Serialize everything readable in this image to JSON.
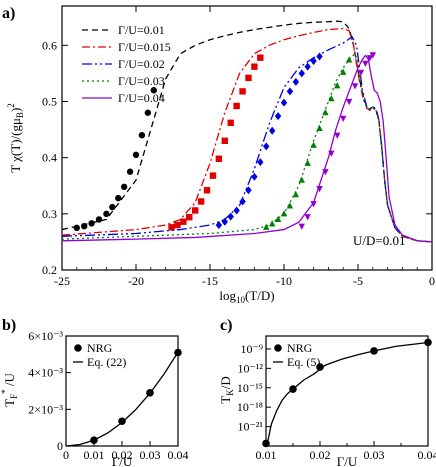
{
  "figure": {
    "panels": {
      "a": "a)",
      "b": "b)",
      "c": "c)"
    }
  },
  "chart_data": [
    {
      "id": "a",
      "type": "line",
      "xlabel": "log10(T/D)",
      "ylabel": "T χ(T)/(gμB)²",
      "xlim": [
        -25,
        0
      ],
      "ylim": [
        0.2,
        0.67
      ],
      "xticks": [
        -25,
        -20,
        -15,
        -10,
        -5,
        0
      ],
      "yticks": [
        0.2,
        0.3,
        0.4,
        0.5,
        0.6
      ],
      "annotation": "U/D=0.01",
      "legend_position": "top-left",
      "series": [
        {
          "name": "Γ/U=0.01",
          "color": "#000000",
          "dash": "6,4",
          "marker": "circle",
          "x": [
            -25,
            -22,
            -20,
            -19,
            -18,
            -17,
            -16,
            -15,
            -14,
            -13,
            -12,
            -11,
            -10,
            -9,
            -8,
            -7,
            -6.5,
            -6,
            -5.6,
            -5.3,
            -5.0,
            -4.7,
            -4.4,
            -4.2,
            -4.0,
            -3.8,
            -3.6,
            -3.4,
            -3.2,
            -3.0,
            -2.5,
            -2,
            -1,
            0
          ],
          "y": [
            0.272,
            0.29,
            0.36,
            0.45,
            0.54,
            0.585,
            0.6,
            0.61,
            0.617,
            0.623,
            0.628,
            0.632,
            0.636,
            0.639,
            0.641,
            0.642,
            0.643,
            0.642,
            0.63,
            0.6,
            0.555,
            0.515,
            0.49,
            0.487,
            0.49,
            0.488,
            0.47,
            0.42,
            0.36,
            0.315,
            0.275,
            0.26,
            0.252,
            0.25
          ],
          "markers_x": [
            -24,
            -23.5,
            -23,
            -22.5,
            -22,
            -21.6,
            -21.2,
            -20.8,
            -20.4,
            -20.0,
            -19.6,
            -19.2,
            -18.8
          ],
          "markers_y": [
            0.275,
            0.278,
            0.283,
            0.29,
            0.3,
            0.312,
            0.328,
            0.348,
            0.375,
            0.405,
            0.44,
            0.48,
            0.52
          ]
        },
        {
          "name": "Γ/U=0.015",
          "color": "#e00000",
          "dash": "8,3,2,3",
          "marker": "square",
          "x": [
            -25,
            -22,
            -20,
            -18,
            -17,
            -16,
            -15,
            -14,
            -13,
            -12,
            -11,
            -10,
            -9,
            -8,
            -7,
            -6,
            -5.6,
            -5.3,
            -5.0,
            -4.7,
            -4.4,
            -4.2,
            -4.0,
            -3.8,
            -3.6,
            -3.4,
            -3.2,
            -3.0,
            -2.5,
            -2,
            -1,
            0
          ],
          "y": [
            0.262,
            0.268,
            0.272,
            0.28,
            0.29,
            0.32,
            0.39,
            0.48,
            0.55,
            0.585,
            0.6,
            0.61,
            0.617,
            0.623,
            0.628,
            0.63,
            0.626,
            0.6,
            0.55,
            0.51,
            0.488,
            0.484,
            0.488,
            0.485,
            0.468,
            0.42,
            0.36,
            0.315,
            0.275,
            0.26,
            0.252,
            0.25
          ],
          "markers_x": [
            -17.6,
            -17.2,
            -16.8,
            -16.4,
            -16.0,
            -15.6,
            -15.2,
            -14.8,
            -14.4,
            -14.0,
            -13.6,
            -13.2,
            -12.8,
            -12.4,
            -12.0,
            -11.6
          ],
          "markers_y": [
            0.276,
            0.28,
            0.286,
            0.294,
            0.306,
            0.322,
            0.342,
            0.368,
            0.398,
            0.43,
            0.462,
            0.492,
            0.518,
            0.542,
            0.562,
            0.578
          ]
        },
        {
          "name": "Γ/U=0.02",
          "color": "#0000e0",
          "dash": "10,3,2,3,2,3",
          "marker": "diamond",
          "x": [
            -25,
            -20,
            -17,
            -15,
            -14,
            -13,
            -12,
            -11,
            -10,
            -9,
            -8,
            -7,
            -6,
            -5.4,
            -5.1,
            -4.9,
            -4.7,
            -4.4,
            -4.2,
            -4.0,
            -3.8,
            -3.6,
            -3.4,
            -3.2,
            -3.0,
            -2.5,
            -2,
            -1,
            0
          ],
          "y": [
            0.26,
            0.265,
            0.272,
            0.28,
            0.29,
            0.315,
            0.38,
            0.46,
            0.525,
            0.56,
            0.578,
            0.592,
            0.604,
            0.615,
            0.6,
            0.56,
            0.52,
            0.49,
            0.486,
            0.49,
            0.486,
            0.468,
            0.42,
            0.36,
            0.315,
            0.275,
            0.26,
            0.252,
            0.25
          ],
          "markers_x": [
            -14.4,
            -14.0,
            -13.6,
            -13.2,
            -12.8,
            -12.4,
            -12.0,
            -11.6,
            -11.2,
            -10.8,
            -10.4,
            -10.0,
            -9.6,
            -9.2,
            -8.8,
            -8.4,
            -8.0,
            -7.6
          ],
          "markers_y": [
            0.28,
            0.286,
            0.295,
            0.306,
            0.322,
            0.342,
            0.366,
            0.392,
            0.42,
            0.448,
            0.474,
            0.498,
            0.518,
            0.535,
            0.55,
            0.562,
            0.572,
            0.58
          ]
        },
        {
          "name": "Γ/U=0.03",
          "color": "#008000",
          "dash": "2,3",
          "marker": "triangle",
          "x": [
            -25,
            -20,
            -15,
            -12,
            -11,
            -10,
            -9,
            -8,
            -7,
            -6.5,
            -6,
            -5.5,
            -5.2,
            -5.0,
            -4.8,
            -4.6,
            -4.4,
            -4.2,
            -4.0,
            -3.8,
            -3.6,
            -3.4,
            -3.2,
            -3.0,
            -2.5,
            -2,
            -1,
            0
          ],
          "y": [
            0.255,
            0.26,
            0.265,
            0.272,
            0.28,
            0.3,
            0.35,
            0.43,
            0.5,
            0.535,
            0.56,
            0.578,
            0.585,
            0.57,
            0.53,
            0.5,
            0.49,
            0.486,
            0.49,
            0.486,
            0.468,
            0.42,
            0.36,
            0.315,
            0.275,
            0.26,
            0.252,
            0.25
          ],
          "markers_x": [
            -11.2,
            -10.8,
            -10.4,
            -10.0,
            -9.6,
            -9.2,
            -8.8,
            -8.4,
            -8.0,
            -7.6,
            -7.2,
            -6.8,
            -6.4,
            -6.0,
            -5.6
          ],
          "markers_y": [
            0.276,
            0.282,
            0.29,
            0.3,
            0.314,
            0.334,
            0.36,
            0.39,
            0.422,
            0.452,
            0.48,
            0.505,
            0.528,
            0.552,
            0.574
          ]
        },
        {
          "name": "Γ/U=0.04",
          "color": "#9400d3",
          "dash": "",
          "marker": "inverted-triangle",
          "x": [
            -25,
            -20,
            -16,
            -12,
            -10,
            -9,
            -8,
            -7.5,
            -7,
            -6.5,
            -6,
            -5.5,
            -5.0,
            -4.7,
            -4.5,
            -4.3,
            -4.1,
            -3.9,
            -3.7,
            -3.5,
            -3.3,
            -3.1,
            -2.9,
            -2.5,
            -2,
            -1,
            0
          ],
          "y": [
            0.252,
            0.255,
            0.258,
            0.265,
            0.272,
            0.285,
            0.32,
            0.36,
            0.4,
            0.45,
            0.49,
            0.525,
            0.56,
            0.575,
            0.582,
            0.575,
            0.545,
            0.52,
            0.515,
            0.5,
            0.465,
            0.4,
            0.33,
            0.28,
            0.262,
            0.252,
            0.25
          ],
          "markers_x": [
            -8.8,
            -8.4,
            -8.0,
            -7.6,
            -7.2,
            -6.8,
            -6.4,
            -6.0,
            -5.6,
            -5.2,
            -4.8,
            -4.5,
            -4.2,
            -4.0
          ],
          "markers_y": [
            0.278,
            0.295,
            0.318,
            0.345,
            0.375,
            0.408,
            0.44,
            0.47,
            0.5,
            0.528,
            0.552,
            0.568,
            0.578,
            0.583
          ]
        }
      ]
    },
    {
      "id": "b",
      "type": "scatter",
      "xlabel": "Γ/U",
      "ylabel": "T*F /U",
      "xlim": [
        0,
        0.04
      ],
      "ylim": [
        0,
        0.006
      ],
      "xticks": [
        0,
        0.01,
        0.02,
        0.03,
        0.04
      ],
      "xtick_labels": [
        "0",
        "0.01",
        "0.02",
        "0.03",
        "0.04"
      ],
      "yticks": [
        0,
        0.002,
        0.004,
        0.006
      ],
      "ytick_labels": [
        "0",
        "2×10⁻³",
        "4×10⁻³",
        "6×10⁻³"
      ],
      "legend_position": "top-left",
      "series": [
        {
          "name": "NRG",
          "style": "markers",
          "x": [
            0.01,
            0.02,
            0.03,
            0.04
          ],
          "y": [
            0.00032,
            0.00135,
            0.0029,
            0.0051
          ]
        },
        {
          "name": "Eq. (22)",
          "style": "line",
          "x": [
            0,
            0.005,
            0.01,
            0.015,
            0.02,
            0.025,
            0.03,
            0.035,
            0.04
          ],
          "y": [
            0,
            8e-05,
            0.00032,
            0.00072,
            0.00128,
            0.002,
            0.00288,
            0.00392,
            0.00512
          ]
        }
      ]
    },
    {
      "id": "c",
      "type": "scatter",
      "xlabel": "Γ/U",
      "ylabel": "TK/D",
      "yscale": "log",
      "xlim": [
        0.01,
        0.04
      ],
      "ylim": [
        -24,
        -7
      ],
      "xticks": [
        0.01,
        0.015,
        0.02,
        0.025,
        0.03,
        0.035,
        0.04
      ],
      "xtick_labels": [
        "0.01",
        "",
        "0.02",
        "",
        "0.03",
        "",
        "0.04"
      ],
      "yticks": [
        -21,
        -18,
        -15,
        -12,
        -9
      ],
      "ytick_labels": [
        "10⁻²¹",
        "10⁻¹⁸",
        "10⁻¹⁵",
        "10⁻¹²",
        "10⁻⁹"
      ],
      "legend_position": "top-left",
      "series": [
        {
          "name": "NRG",
          "style": "markers",
          "x": [
            0.01,
            0.015,
            0.02,
            0.03,
            0.04
          ],
          "y": [
            -23.6,
            -15.2,
            -11.8,
            -9.3,
            -8.0
          ]
        },
        {
          "name": "Eq. (5)",
          "style": "line",
          "x": [
            0.0102,
            0.011,
            0.012,
            0.013,
            0.014,
            0.015,
            0.017,
            0.019,
            0.021,
            0.024,
            0.027,
            0.03,
            0.034,
            0.04
          ],
          "y": [
            -23.8,
            -20.6,
            -18.5,
            -16.9,
            -15.9,
            -15.2,
            -13.8,
            -12.8,
            -11.5,
            -10.6,
            -9.9,
            -9.3,
            -8.6,
            -8.0
          ]
        }
      ]
    }
  ]
}
